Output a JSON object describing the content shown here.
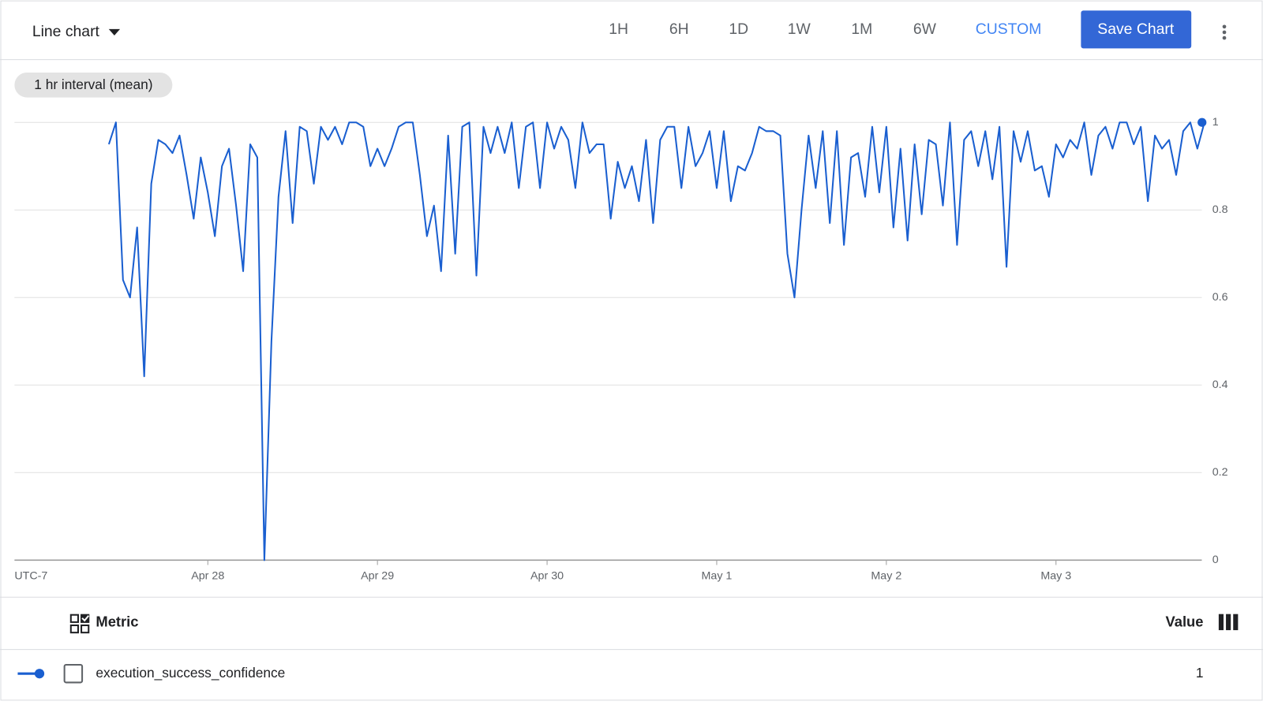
{
  "toolbar": {
    "chart_type": "Line chart",
    "ranges": [
      "1H",
      "6H",
      "1D",
      "1W",
      "1M",
      "6W",
      "CUSTOM"
    ],
    "save": "Save Chart"
  },
  "chart_data": {
    "type": "line",
    "interval": "1 hr interval (mean)",
    "timezone": "UTC-7",
    "categories": [
      null,
      null,
      null,
      null,
      null,
      null,
      null,
      null,
      null,
      null,
      null,
      null,
      null,
      null,
      "Apr 28",
      null,
      null,
      null,
      null,
      null,
      null,
      null,
      null,
      null,
      null,
      null,
      null,
      null,
      null,
      null,
      null,
      null,
      null,
      null,
      null,
      null,
      null,
      null,
      "Apr 29",
      null,
      null,
      null,
      null,
      null,
      null,
      null,
      null,
      null,
      null,
      null,
      null,
      null,
      null,
      null,
      null,
      null,
      null,
      null,
      null,
      null,
      null,
      null,
      "Apr 30",
      null,
      null,
      null,
      null,
      null,
      null,
      null,
      null,
      null,
      null,
      null,
      null,
      null,
      null,
      null,
      null,
      null,
      null,
      null,
      null,
      null,
      null,
      null,
      "May 1",
      null,
      null,
      null,
      null,
      null,
      null,
      null,
      null,
      null,
      null,
      null,
      null,
      null,
      null,
      null,
      null,
      null,
      null,
      null,
      null,
      null,
      null,
      null,
      "May 2",
      null,
      null,
      null,
      null,
      null,
      null,
      null,
      null,
      null,
      null,
      null,
      null,
      null,
      null,
      null,
      null,
      null,
      null,
      null,
      null,
      null,
      null,
      null,
      "May 3",
      null,
      null,
      null,
      null,
      null,
      null,
      null,
      null,
      null,
      null,
      null,
      null,
      null,
      null,
      null,
      null,
      null,
      null,
      null,
      null,
      null
    ],
    "series": [
      {
        "name": "execution_success_confidence",
        "color": "#1a5fd0",
        "values": [
          0.95,
          1,
          0.64,
          0.6,
          0.76,
          0.42,
          0.86,
          0.96,
          0.95,
          0.93,
          0.97,
          0.88,
          0.78,
          0.92,
          0.84,
          0.74,
          0.9,
          0.94,
          0.81,
          0.66,
          0.95,
          0.92,
          0,
          0.5,
          0.83,
          0.98,
          0.77,
          0.99,
          0.98,
          0.86,
          0.99,
          0.96,
          0.99,
          0.95,
          1,
          1,
          0.99,
          0.9,
          0.94,
          0.9,
          0.94,
          0.99,
          1,
          1,
          0.88,
          0.74,
          0.81,
          0.66,
          0.97,
          0.7,
          0.99,
          1,
          0.65,
          0.99,
          0.93,
          0.99,
          0.93,
          1,
          0.85,
          0.99,
          1,
          0.85,
          1,
          0.94,
          0.99,
          0.96,
          0.85,
          1,
          0.93,
          0.95,
          0.95,
          0.78,
          0.91,
          0.85,
          0.9,
          0.82,
          0.96,
          0.77,
          0.96,
          0.99,
          0.99,
          0.85,
          0.99,
          0.9,
          0.93,
          0.98,
          0.85,
          0.98,
          0.82,
          0.9,
          0.89,
          0.93,
          0.99,
          0.98,
          0.98,
          0.97,
          0.7,
          0.6,
          0.8,
          0.97,
          0.85,
          0.98,
          0.77,
          0.98,
          0.72,
          0.92,
          0.93,
          0.83,
          0.99,
          0.84,
          0.99,
          0.76,
          0.94,
          0.73,
          0.95,
          0.79,
          0.96,
          0.95,
          0.81,
          1,
          0.72,
          0.96,
          0.98,
          0.9,
          0.98,
          0.87,
          0.99,
          0.67,
          0.98,
          0.91,
          0.98,
          0.89,
          0.9,
          0.83,
          0.95,
          0.92,
          0.96,
          0.94,
          1,
          0.88,
          0.97,
          0.99,
          0.94,
          1,
          1,
          0.95,
          0.99,
          0.82,
          0.97,
          0.94,
          0.96,
          0.88,
          0.98,
          1,
          0.94,
          1
        ]
      }
    ],
    "ylim": [
      0,
      1
    ],
    "yticks": [
      0,
      0.2,
      0.4,
      0.6,
      0.8,
      1
    ],
    "grid": true
  },
  "table": {
    "metric_header": "Metric",
    "value_header": "Value"
  }
}
